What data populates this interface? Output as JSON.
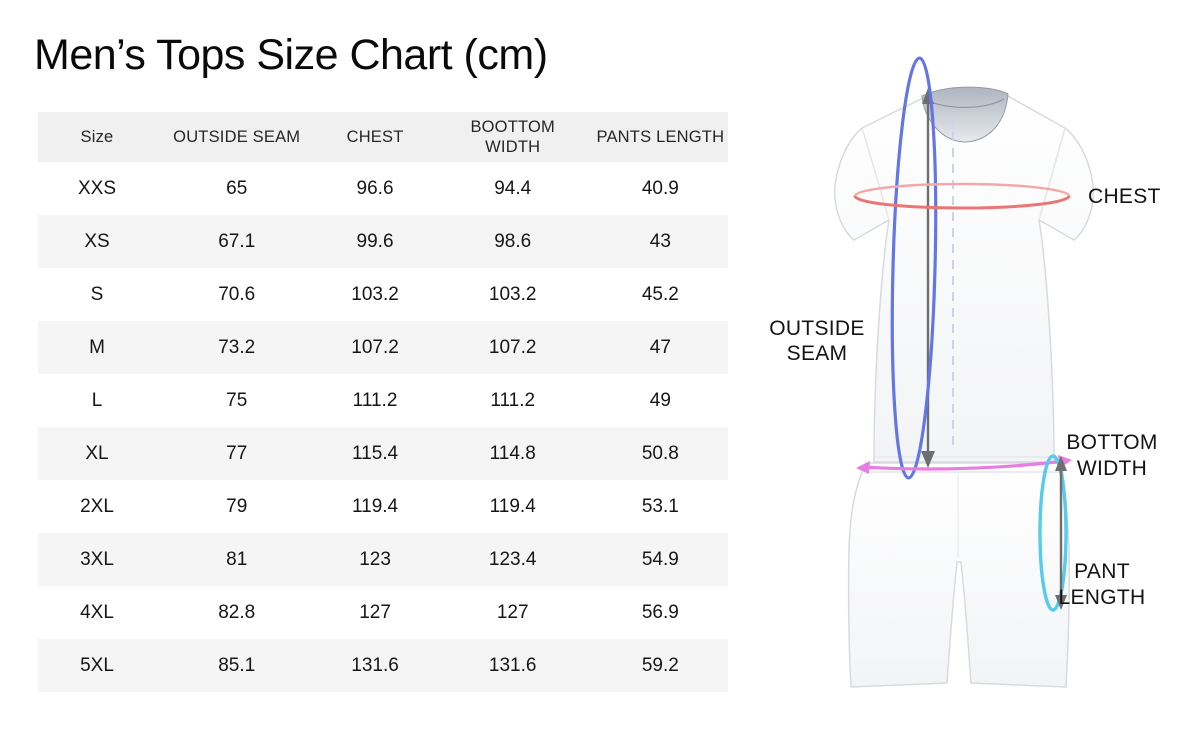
{
  "title": "Men’s Tops Size Chart (cm)",
  "units": "cm",
  "table": {
    "headers": [
      "Size",
      "OUTSIDE SEAM",
      "CHEST",
      "BOOTTOM\nWIDTH",
      "PANTS LENGTH"
    ],
    "rows": [
      [
        "XXS",
        "65",
        "96.6",
        "94.4",
        "40.9"
      ],
      [
        "XS",
        "67.1",
        "99.6",
        "98.6",
        "43"
      ],
      [
        "S",
        "70.6",
        "103.2",
        "103.2",
        "45.2"
      ],
      [
        "M",
        "73.2",
        "107.2",
        "107.2",
        "47"
      ],
      [
        "L",
        "75",
        "111.2",
        "111.2",
        "49"
      ],
      [
        "XL",
        "77",
        "115.4",
        "114.8",
        "50.8"
      ],
      [
        "2XL",
        "79",
        "119.4",
        "119.4",
        "53.1"
      ],
      [
        "3XL",
        "81",
        "123",
        "123.4",
        "54.9"
      ],
      [
        "4XL",
        "82.8",
        "127",
        "127",
        "56.9"
      ],
      [
        "5XL",
        "85.1",
        "131.6",
        "131.6",
        "59.2"
      ]
    ]
  },
  "diagram": {
    "labels": {
      "outside_seam": "OUTSIDE\nSEAM",
      "chest": "CHEST",
      "bottom_width": "BOTTOM\nWIDTH",
      "pant_length": "PANT\nLENGTH"
    },
    "colors": {
      "chest_line": "#ea7575",
      "chest_line_back": "#f2a8a8",
      "outside_seam_line": "#6277e4",
      "bottom_width_line": "#e77de0",
      "pant_length_line": "#55cbed",
      "arrow": "#6e6e6e",
      "dashed_guide": "#c9d3ea"
    }
  },
  "colors": {
    "header_bg": "#f0f0f0",
    "stripe_bg": "#f5f5f5",
    "text": "#1c1c1c"
  }
}
